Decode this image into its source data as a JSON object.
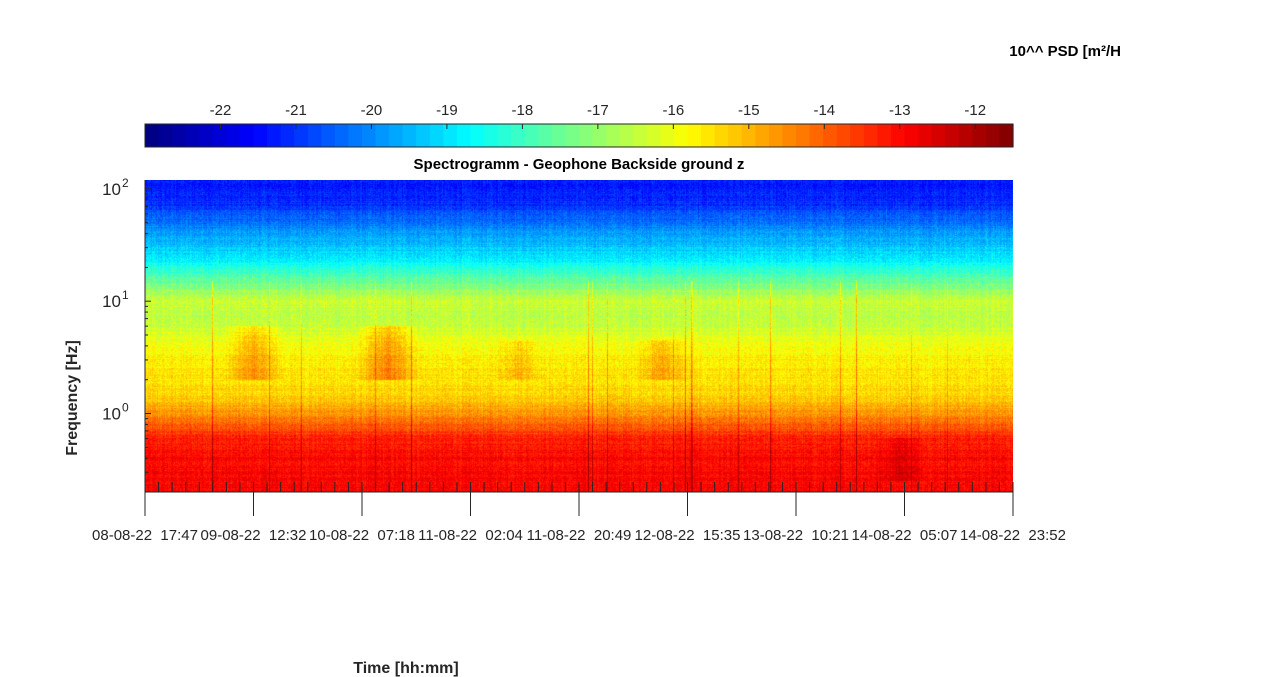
{
  "chart_data": {
    "type": "heatmap",
    "title": "Spectrogramm - Geophone Backside ground z",
    "xlabel": "Time [hh:mm]",
    "ylabel": "Frequency [Hz]",
    "y_scale": "log",
    "ylim": [
      0.2,
      120
    ],
    "y_ticks": [
      {
        "base": "10",
        "exp": "2",
        "value": 100
      },
      {
        "base": "10",
        "exp": "1",
        "value": 10
      },
      {
        "base": "10",
        "exp": "0",
        "value": 1
      }
    ],
    "x_ticks": [
      "08-08-22  17:47",
      "09-08-22  12:32",
      "10-08-22  07:18",
      "11-08-22  02:04",
      "11-08-22  20:49",
      "12-08-22  15:35",
      "13-08-22  10:21",
      "14-08-22  05:07",
      "14-08-22  23:52"
    ],
    "colorbar": {
      "title": "10^^ PSD [m²/H",
      "colormap": "jet",
      "range": [
        -23,
        -11.5
      ],
      "ticks": [
        "-22",
        "-21",
        "-20",
        "-19",
        "-18",
        "-17",
        "-16",
        "-15",
        "-14",
        "-13",
        "-12"
      ],
      "tick_values": [
        -22,
        -21,
        -20,
        -19,
        -18,
        -17,
        -16,
        -15,
        -14,
        -13,
        -12
      ],
      "placement": "top"
    },
    "psd_by_frequency": [
      {
        "freq_hz": 120,
        "log10_psd": -21.3
      },
      {
        "freq_hz": 70,
        "log10_psd": -21.0
      },
      {
        "freq_hz": 40,
        "log10_psd": -19.8
      },
      {
        "freq_hz": 25,
        "log10_psd": -19.0
      },
      {
        "freq_hz": 15,
        "log10_psd": -17.5
      },
      {
        "freq_hz": 10,
        "log10_psd": -16.4
      },
      {
        "freq_hz": 7,
        "log10_psd": -16.6
      },
      {
        "freq_hz": 5,
        "log10_psd": -16.2
      },
      {
        "freq_hz": 3,
        "log10_psd": -15.6
      },
      {
        "freq_hz": 1.5,
        "log10_psd": -15.4
      },
      {
        "freq_hz": 1.0,
        "log10_psd": -14.6
      },
      {
        "freq_hz": 0.6,
        "log10_psd": -13.3
      },
      {
        "freq_hz": 0.4,
        "log10_psd": -13.0
      },
      {
        "freq_hz": 0.2,
        "log10_psd": -12.9
      }
    ],
    "activity_bursts": [
      {
        "start_frac": 0.09,
        "end_frac": 0.16,
        "freq_low": 2.0,
        "freq_high": 6.0,
        "boost": 1.0
      },
      {
        "start_frac": 0.24,
        "end_frac": 0.32,
        "freq_low": 2.0,
        "freq_high": 6.0,
        "boost": 1.2
      },
      {
        "start_frac": 0.4,
        "end_frac": 0.46,
        "freq_low": 2.0,
        "freq_high": 4.5,
        "boost": 0.6
      },
      {
        "start_frac": 0.56,
        "end_frac": 0.63,
        "freq_low": 2.0,
        "freq_high": 4.5,
        "boost": 0.8
      },
      {
        "start_frac": 0.84,
        "end_frac": 0.9,
        "freq_low": 0.25,
        "freq_high": 0.6,
        "boost": 0.5
      }
    ]
  }
}
